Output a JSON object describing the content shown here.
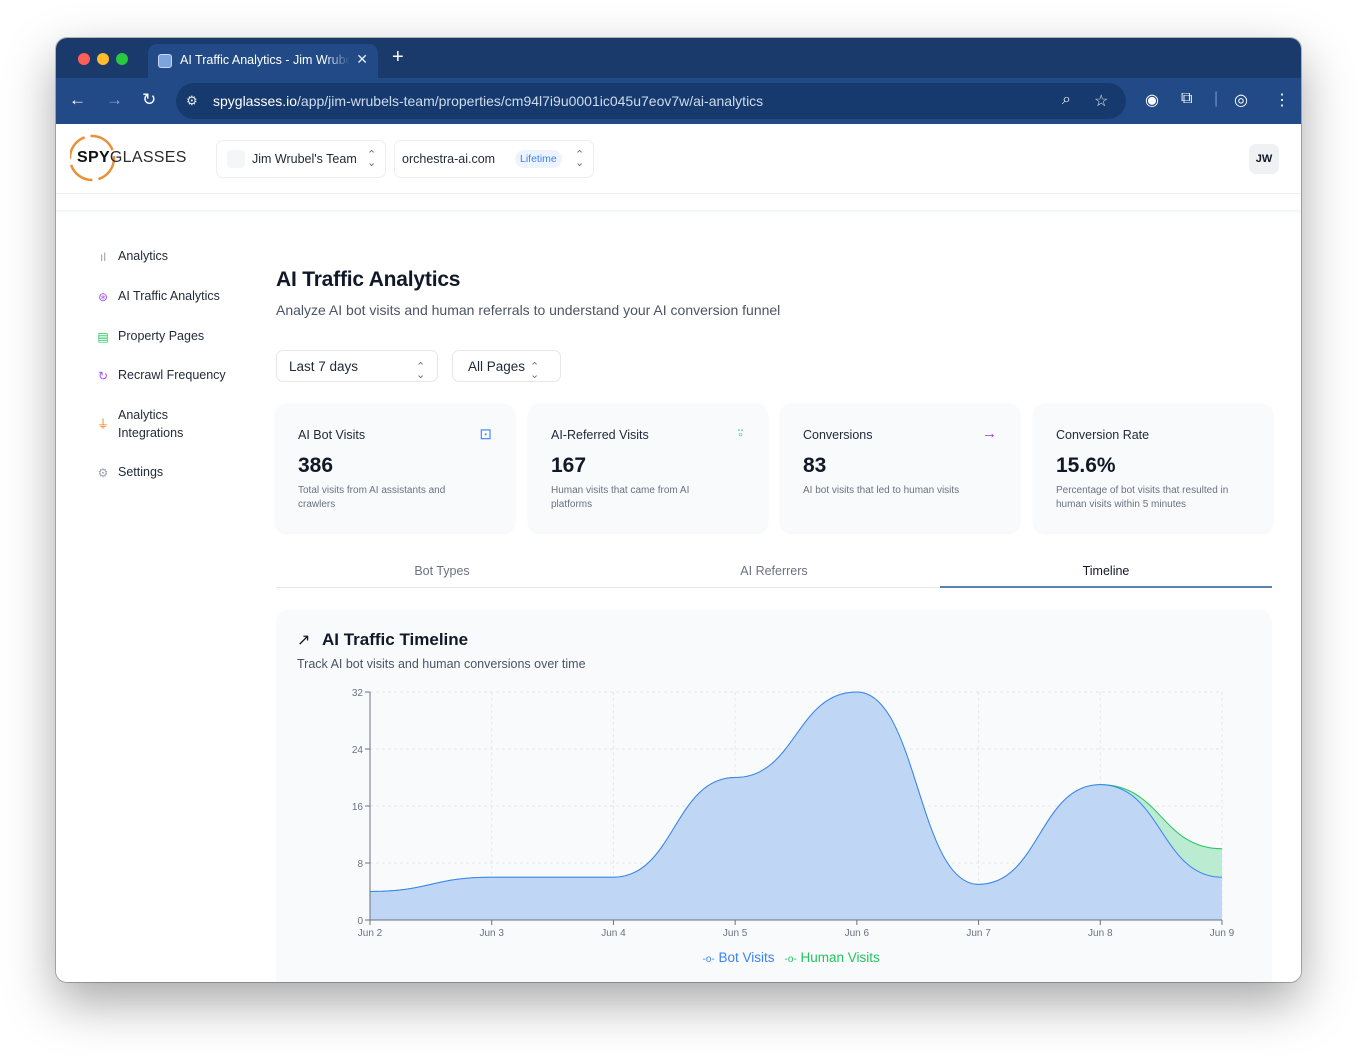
{
  "browser": {
    "tab_title": "AI Traffic Analytics - Jim Wrubel's Team",
    "url_host": "spyglasses.io",
    "url_path": "/app/jim-wrubels-team/properties/cm94l7i9u0001ic045u7eov7w/ai-analytics",
    "icons": [
      "back-icon",
      "forward-icon",
      "reload-icon",
      "site-info-icon",
      "zoom-icon",
      "bookmark-star-icon",
      "extension-icon",
      "puzzle-icon",
      "profile-icon",
      "menu-icon"
    ]
  },
  "header": {
    "logo_bold": "SPY",
    "logo_light": "GLASSES",
    "team": "Jim Wrubel's Team",
    "property": "orchestra-ai.com",
    "plan_badge": "Lifetime",
    "avatar": "JW"
  },
  "sidebar": {
    "items": [
      {
        "label": "Analytics",
        "icon": "bar-chart-icon",
        "color": "#9ca3af"
      },
      {
        "label": "AI Traffic Analytics",
        "icon": "bot-icon",
        "color": "#a855f7"
      },
      {
        "label": "Property Pages",
        "icon": "file-icon",
        "color": "#22c55e"
      },
      {
        "label": "Recrawl Frequency",
        "icon": "refresh-icon",
        "color": "#a855f7"
      },
      {
        "label": "Analytics Integrations",
        "icon": "plug-icon",
        "color": "#f97316"
      },
      {
        "label": "Settings",
        "icon": "gear-icon",
        "color": "#9ca3af"
      }
    ]
  },
  "main": {
    "title": "AI Traffic Analytics",
    "subtitle": "Analyze AI bot visits and human referrals to understand your AI conversion funnel",
    "filters": {
      "range": "Last 7 days",
      "pages": "All Pages"
    },
    "cards": [
      {
        "title": "AI Bot Visits",
        "value": "386",
        "desc": "Total visits from AI assistants and crawlers",
        "icon": "bot-icon",
        "color": "#3b82f6"
      },
      {
        "title": "AI-Referred Visits",
        "value": "167",
        "desc": "Human visits that came from AI platforms",
        "icon": "user-icon",
        "color": "#22c55e"
      },
      {
        "title": "Conversions",
        "value": "83",
        "desc": "AI bot visits that led to human visits",
        "icon": "arrow-right-icon",
        "color": "#9333ea"
      },
      {
        "title": "Conversion Rate",
        "value": "15.6%",
        "desc": "Percentage of bot visits that resulted in human visits within 5 minutes",
        "icon": "",
        "color": ""
      }
    ],
    "tabs": [
      "Bot Types",
      "AI Referrers",
      "Timeline"
    ],
    "active_tab": "Timeline",
    "panel": {
      "title": "AI Traffic Timeline",
      "subtitle": "Track AI bot visits and human conversions over time"
    }
  },
  "chart_data": {
    "type": "area",
    "x": [
      "Jun 2",
      "Jun 3",
      "Jun 4",
      "Jun 5",
      "Jun 6",
      "Jun 7",
      "Jun 8",
      "Jun 9"
    ],
    "yticks": [
      0,
      8,
      16,
      24,
      32
    ],
    "ylim": [
      0,
      32
    ],
    "series": [
      {
        "name": "Bot Visits",
        "values": [
          4,
          6,
          6,
          20,
          32,
          5,
          19,
          6
        ],
        "color": "#3b82f6",
        "fill": "#bfd6f6"
      },
      {
        "name": "Human Visits",
        "values": [
          4,
          6,
          6,
          20,
          32,
          5,
          19,
          10
        ],
        "color": "#22c55e",
        "fill": "#b7ebcf"
      }
    ],
    "legend": "bottom-center",
    "grid": true
  }
}
